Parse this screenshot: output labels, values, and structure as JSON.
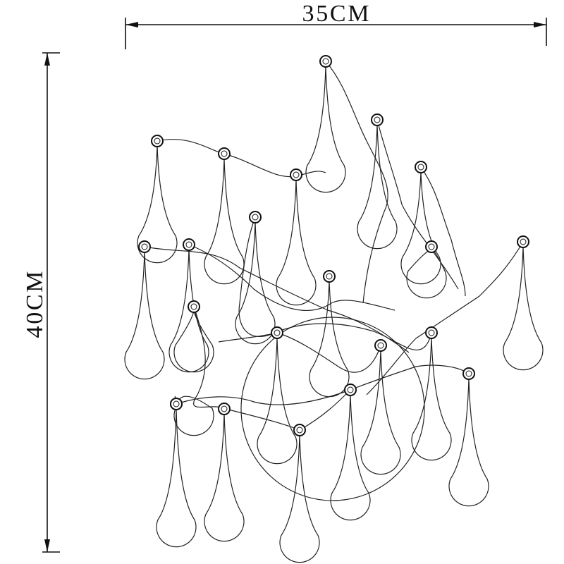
{
  "dimensions": {
    "width": "35CM",
    "height": "40CM"
  }
}
